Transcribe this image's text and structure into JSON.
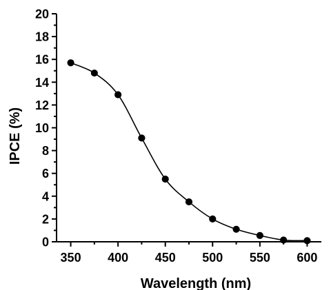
{
  "chart_data": {
    "type": "line",
    "xlabel": "Wavelength (nm)",
    "ylabel": "IPCE (%)",
    "xlim": [
      335,
      615
    ],
    "ylim": [
      0,
      20
    ],
    "xticks": [
      350,
      400,
      450,
      500,
      550,
      600
    ],
    "xticks_minor": [
      375,
      425,
      475,
      525,
      575
    ],
    "yticks": [
      0,
      2,
      4,
      6,
      8,
      10,
      12,
      14,
      16,
      18,
      20
    ],
    "yticks_minor": [
      1,
      3,
      5,
      7,
      9,
      11,
      13,
      15,
      17,
      19
    ],
    "grid": false,
    "series": [
      {
        "x": [
          350,
          375,
          400,
          425,
          450,
          475,
          500,
          525,
          550,
          575,
          600
        ],
        "y": [
          15.7,
          14.8,
          12.9,
          9.1,
          5.5,
          3.5,
          2.0,
          1.1,
          0.55,
          0.15,
          0.1
        ],
        "color": "#000000",
        "marker": "circle"
      }
    ]
  }
}
